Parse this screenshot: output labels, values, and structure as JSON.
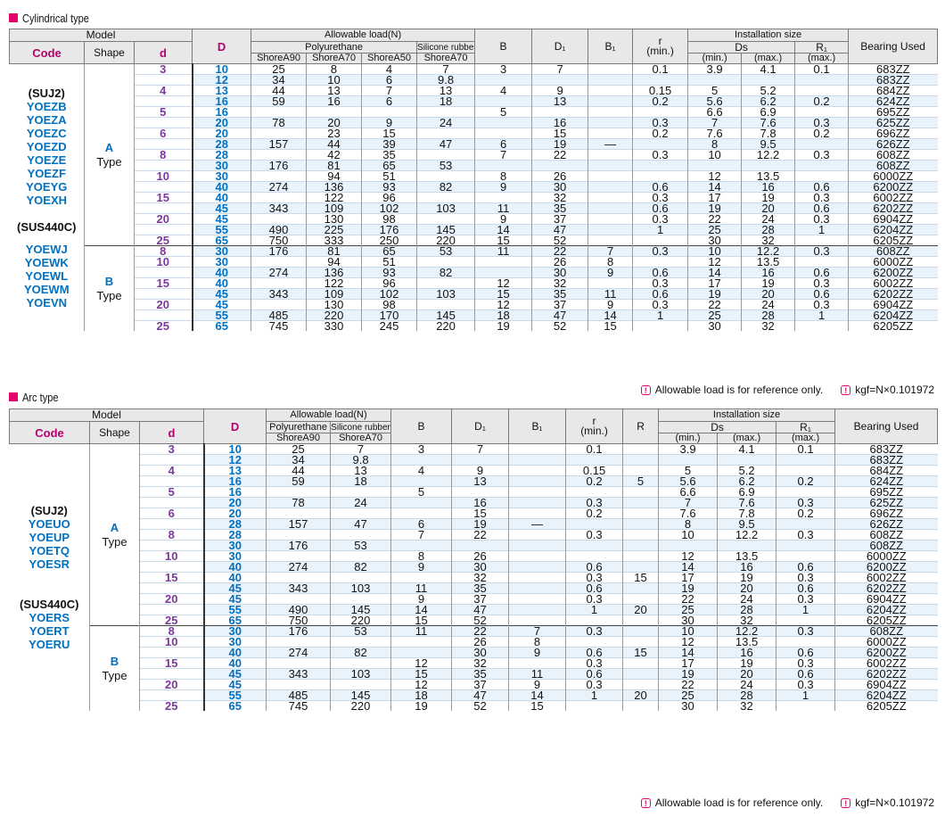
{
  "cyl": {
    "title": "Cylindrical type",
    "h_model": "Model",
    "h_code": "Code",
    "h_shape": "Shape",
    "h_d": "d",
    "h_D": "D",
    "h_load": "Allowable load(N)",
    "h_poly": "Polyurethane",
    "h_sil": "Silicone rubber",
    "h_a90": "ShoreA90",
    "h_a70": "ShoreA70",
    "h_a50": "ShoreA50",
    "h_sa70": "ShoreA70",
    "h_B": "B",
    "h_D1": "D₁",
    "h_B1": "B₁",
    "h_r": "r",
    "h_rmin": "(min.)",
    "h_inst": "Installation size",
    "h_Ds": "Ds",
    "h_R1": "R₁",
    "h_min": "(min.)",
    "h_max": "(max.)",
    "h_r1max": "(max.)",
    "h_bearing": "Bearing Used",
    "codeA": [
      "(SUJ2)",
      "YOEZB",
      "YOEZA",
      "YOEZC",
      "YOEZD",
      "YOEZE",
      "YOEZF",
      "YOEYG",
      "YOEXH",
      "",
      "(SUS440C)"
    ],
    "shapeA": [
      "A",
      "Type"
    ],
    "codeB": [
      "YOEWJ",
      "YOEWK",
      "YOEWL",
      "YOEWM",
      "YOEVN"
    ],
    "shapeB": [
      "B",
      "Type"
    ],
    "rows": [
      [
        "3",
        "10",
        "25",
        "8",
        "4",
        "7",
        "3",
        "7",
        "",
        "0.1",
        "3.9",
        "4.1",
        "0.1",
        "683ZZ"
      ],
      [
        "",
        "12",
        "34",
        "10",
        "6",
        "9.8",
        "",
        "",
        "",
        "",
        "",
        "",
        "",
        "683ZZ"
      ],
      [
        "4",
        "13",
        "44",
        "13",
        "7",
        "13",
        "4",
        "9",
        "",
        "0.15",
        "5",
        "5.2",
        "",
        "684ZZ"
      ],
      [
        "",
        "16",
        "59",
        "16",
        "6",
        "18",
        "",
        "13",
        "",
        "0.2",
        "5.6",
        "6.2",
        "0.2",
        "624ZZ"
      ],
      [
        "5",
        "16",
        "",
        "",
        "",
        "",
        "5",
        "",
        "",
        "",
        "6.6",
        "6.9",
        "",
        "695ZZ"
      ],
      [
        "",
        "20",
        "78",
        "20",
        "9",
        "24",
        "",
        "16",
        "",
        "0.3",
        "7",
        "7.6",
        "0.3",
        "625ZZ"
      ],
      [
        "6",
        "20",
        "",
        "23",
        "15",
        "",
        "",
        "15",
        "",
        "0.2",
        "7.6",
        "7.8",
        "0.2",
        "696ZZ"
      ],
      [
        "",
        "28",
        "157",
        "44",
        "39",
        "47",
        "6",
        "19",
        "—",
        "",
        "8",
        "9.5",
        "",
        "626ZZ"
      ],
      [
        "8",
        "28",
        "",
        "42",
        "35",
        "",
        "7",
        "22",
        "",
        "0.3",
        "10",
        "12.2",
        "0.3",
        "608ZZ"
      ],
      [
        "",
        "30",
        "176",
        "81",
        "65",
        "53",
        "",
        "",
        "",
        "",
        "",
        "",
        "",
        "608ZZ"
      ],
      [
        "10",
        "30",
        "",
        "94",
        "51",
        "",
        "8",
        "26",
        "",
        "",
        "12",
        "13.5",
        "",
        "6000ZZ"
      ],
      [
        "",
        "40",
        "274",
        "136",
        "93",
        "82",
        "9",
        "30",
        "",
        "0.6",
        "14",
        "16",
        "0.6",
        "6200ZZ"
      ],
      [
        "15",
        "40",
        "",
        "122",
        "96",
        "",
        "",
        "32",
        "",
        "0.3",
        "17",
        "19",
        "0.3",
        "6002ZZ"
      ],
      [
        "",
        "45",
        "343",
        "109",
        "102",
        "103",
        "11",
        "35",
        "",
        "0.6",
        "19",
        "20",
        "0.6",
        "6202ZZ"
      ],
      [
        "20",
        "45",
        "",
        "130",
        "98",
        "",
        "9",
        "37",
        "",
        "0.3",
        "22",
        "24",
        "0.3",
        "6904ZZ"
      ],
      [
        "",
        "55",
        "490",
        "225",
        "176",
        "145",
        "14",
        "47",
        "",
        "1",
        "25",
        "28",
        "1",
        "6204ZZ"
      ],
      [
        "25",
        "65",
        "750",
        "333",
        "250",
        "220",
        "15",
        "52",
        "",
        "",
        "30",
        "32",
        "",
        "6205ZZ"
      ],
      [
        "8",
        "30",
        "176",
        "81",
        "65",
        "53",
        "11",
        "22",
        "7",
        "0.3",
        "10",
        "12.2",
        "0.3",
        "608ZZ"
      ],
      [
        "10",
        "30",
        "",
        "94",
        "51",
        "",
        "",
        "26",
        "8",
        "",
        "12",
        "13.5",
        "",
        "6000ZZ"
      ],
      [
        "",
        "40",
        "274",
        "136",
        "93",
        "82",
        "",
        "30",
        "9",
        "0.6",
        "14",
        "16",
        "0.6",
        "6200ZZ"
      ],
      [
        "15",
        "40",
        "",
        "122",
        "96",
        "",
        "12",
        "32",
        "",
        "0.3",
        "17",
        "19",
        "0.3",
        "6002ZZ"
      ],
      [
        "",
        "45",
        "343",
        "109",
        "102",
        "103",
        "15",
        "35",
        "11",
        "0.6",
        "19",
        "20",
        "0.6",
        "6202ZZ"
      ],
      [
        "20",
        "45",
        "",
        "130",
        "98",
        "",
        "12",
        "37",
        "9",
        "0.3",
        "22",
        "24",
        "0.3",
        "6904ZZ"
      ],
      [
        "",
        "55",
        "485",
        "220",
        "170",
        "145",
        "18",
        "47",
        "14",
        "1",
        "25",
        "28",
        "1",
        "6204ZZ"
      ],
      [
        "25",
        "65",
        "745",
        "330",
        "245",
        "220",
        "19",
        "52",
        "15",
        "",
        "30",
        "32",
        "",
        "6205ZZ"
      ]
    ]
  },
  "arc": {
    "title": "Arc type",
    "h_model": "Model",
    "h_code": "Code",
    "h_shape": "Shape",
    "h_d": "d",
    "h_D": "D",
    "h_load": "Allowable load(N)",
    "h_poly": "Polyurethane",
    "h_sil": "Silicone rubber",
    "h_a90": "ShoreA90",
    "h_a70": "ShoreA70",
    "h_B": "B",
    "h_D1": "D₁",
    "h_B1": "B₁",
    "h_r": "r",
    "h_rmin": "(min.)",
    "h_R": "R",
    "h_inst": "Installation size",
    "h_Ds": "Ds",
    "h_R1": "R₁",
    "h_min": "(min.)",
    "h_max": "(max.)",
    "h_r1max": "(max.)",
    "h_bearing": "Bearing Used",
    "codeA": [
      "(SUJ2)",
      "YOEUO",
      "YOEUP",
      "YOETQ",
      "YOESR",
      "",
      "",
      "(SUS440C)",
      "YOERS",
      "YOERT",
      "YOERU"
    ],
    "shapeA": [
      "A",
      "Type"
    ],
    "shapeB": [
      "B",
      "Type"
    ],
    "rows": [
      [
        "3",
        "10",
        "25",
        "7",
        "3",
        "7",
        "",
        "0.1",
        "",
        "3.9",
        "4.1",
        "0.1",
        "683ZZ"
      ],
      [
        "",
        "12",
        "34",
        "9.8",
        "",
        "",
        "",
        "",
        "",
        "",
        "",
        "",
        "683ZZ"
      ],
      [
        "4",
        "13",
        "44",
        "13",
        "4",
        "9",
        "",
        "0.15",
        "",
        "5",
        "5.2",
        "",
        "684ZZ"
      ],
      [
        "",
        "16",
        "59",
        "18",
        "",
        "13",
        "",
        "0.2",
        "5",
        "5.6",
        "6.2",
        "0.2",
        "624ZZ"
      ],
      [
        "5",
        "16",
        "",
        "",
        "5",
        "",
        "",
        "",
        "",
        "6.6",
        "6.9",
        "",
        "695ZZ"
      ],
      [
        "",
        "20",
        "78",
        "24",
        "",
        "16",
        "",
        "0.3",
        "",
        "7",
        "7.6",
        "0.3",
        "625ZZ"
      ],
      [
        "6",
        "20",
        "",
        "",
        "",
        "15",
        "",
        "0.2",
        "",
        "7.6",
        "7.8",
        "0.2",
        "696ZZ"
      ],
      [
        "",
        "28",
        "157",
        "47",
        "6",
        "19",
        "—",
        "",
        "",
        "8",
        "9.5",
        "",
        "626ZZ"
      ],
      [
        "8",
        "28",
        "",
        "",
        "7",
        "22",
        "",
        "0.3",
        "",
        "10",
        "12.2",
        "0.3",
        "608ZZ"
      ],
      [
        "",
        "30",
        "176",
        "53",
        "",
        "",
        "",
        "",
        "",
        "",
        "",
        "",
        "608ZZ"
      ],
      [
        "10",
        "30",
        "",
        "",
        "8",
        "26",
        "",
        "",
        "",
        "12",
        "13.5",
        "",
        "6000ZZ"
      ],
      [
        "",
        "40",
        "274",
        "82",
        "9",
        "30",
        "",
        "0.6",
        "",
        "14",
        "16",
        "0.6",
        "6200ZZ"
      ],
      [
        "15",
        "40",
        "",
        "",
        "",
        "32",
        "",
        "0.3",
        "15",
        "17",
        "19",
        "0.3",
        "6002ZZ"
      ],
      [
        "",
        "45",
        "343",
        "103",
        "11",
        "35",
        "",
        "0.6",
        "",
        "19",
        "20",
        "0.6",
        "6202ZZ"
      ],
      [
        "20",
        "45",
        "",
        "",
        "9",
        "37",
        "",
        "0.3",
        "",
        "22",
        "24",
        "0.3",
        "6904ZZ"
      ],
      [
        "",
        "55",
        "490",
        "145",
        "14",
        "47",
        "",
        "1",
        "20",
        "25",
        "28",
        "1",
        "6204ZZ"
      ],
      [
        "25",
        "65",
        "750",
        "220",
        "15",
        "52",
        "",
        "",
        "",
        "30",
        "32",
        "",
        "6205ZZ"
      ],
      [
        "8",
        "30",
        "176",
        "53",
        "11",
        "22",
        "7",
        "0.3",
        "",
        "10",
        "12.2",
        "0.3",
        "608ZZ"
      ],
      [
        "10",
        "30",
        "",
        "",
        "",
        "26",
        "8",
        "",
        "",
        "12",
        "13.5",
        "",
        "6000ZZ"
      ],
      [
        "",
        "40",
        "274",
        "82",
        "",
        "30",
        "9",
        "0.6",
        "15",
        "14",
        "16",
        "0.6",
        "6200ZZ"
      ],
      [
        "15",
        "40",
        "",
        "",
        "12",
        "32",
        "",
        "0.3",
        "",
        "17",
        "19",
        "0.3",
        "6002ZZ"
      ],
      [
        "",
        "45",
        "343",
        "103",
        "15",
        "35",
        "11",
        "0.6",
        "",
        "19",
        "20",
        "0.6",
        "6202ZZ"
      ],
      [
        "20",
        "45",
        "",
        "",
        "12",
        "37",
        "9",
        "0.3",
        "",
        "22",
        "24",
        "0.3",
        "6904ZZ"
      ],
      [
        "",
        "55",
        "485",
        "145",
        "18",
        "47",
        "14",
        "1",
        "20",
        "25",
        "28",
        "1",
        "6204ZZ"
      ],
      [
        "25",
        "65",
        "745",
        "220",
        "19",
        "52",
        "15",
        "",
        "",
        "30",
        "32",
        "",
        "6205ZZ"
      ]
    ]
  },
  "notes": {
    "ref": "Allowable load is for reference only.",
    "kgf": "kgf=N×0.101972"
  }
}
